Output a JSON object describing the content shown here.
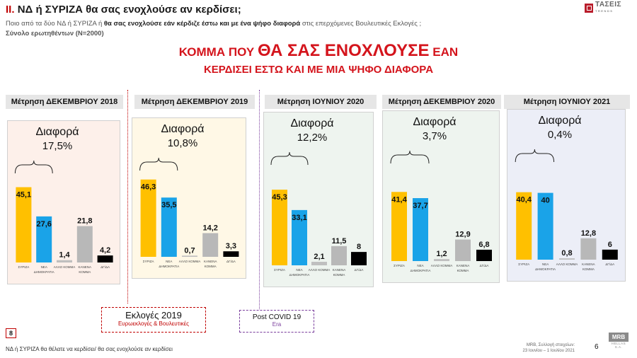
{
  "header": {
    "roman": "ΙΙ.",
    "title": "ΝΔ  ή ΣΥΡΙΖΑ θα σας ενοχλούσε αν κερδίσει;",
    "question_pre": "Ποιο από τα δύο ΝΔ ή ΣΥΡΙΖΑ ή ",
    "question_bold": "θα σας ενοχλούσε εάν κέρδιζε έστω και με ένα ψήφο διαφορά",
    "question_post": " στις επερχόμενες Βουλευτικές Εκλογές ;",
    "base": "Σύνολο ερωτηθέντων (N=2000)"
  },
  "logo": {
    "name": "ΤΑΣΕΙΣ",
    "sub": "TRENDS"
  },
  "headline": {
    "part1": "ΚΟΜΜΑ ΠΟΥ ",
    "part2": "ΘΑ ΣΑΣ ΕΝΟΧΛΟΥΣΕ",
    "part3": " ΕΑΝ",
    "line2": "ΚΕΡΔΙΣΕΙ ΕΣΤΩ ΚΑΙ ΜΕ ΜΙΑ ΨΗΦΟ ΔΙΑΦΟΡΑ"
  },
  "colors": {
    "syriza": "#ffc000",
    "nd": "#1aa3e8",
    "other": "#bfbfbf",
    "none": "#b8b8b8",
    "dk": "#000000",
    "accent_red": "#d4141c"
  },
  "chart_data": [
    {
      "type": "bar",
      "title": "Μέτρηση ΔΕΚΕΜΒΡΙΟΥ 2018",
      "annotation": "Διαφορά",
      "difference": "17,5%",
      "categories": [
        "ΣΥΡΙΖΑ",
        "ΝΕΑ ΔΗΜΟΚΡΑΤΙΑ",
        "ΑΛΛΟ ΚΟΜΜΑ",
        "ΚΑΝΕΝΑ ΚΟΜΜΑ",
        "ΔΓ/ΔΑ"
      ],
      "values": [
        45.1,
        27.6,
        1.4,
        21.8,
        4.2
      ],
      "value_labels": [
        "45,1",
        "27,6",
        "1,4",
        "21,8",
        "4,2"
      ],
      "panel_bg": "#fdf0ea",
      "ylim": [
        0,
        50
      ]
    },
    {
      "type": "bar",
      "title": "Μέτρηση ΔΕΚΕΜΒΡΙΟΥ 2019",
      "annotation": "Διαφορά",
      "difference": "10,8%",
      "categories": [
        "ΣΥΡΙΖΑ",
        "ΝΕΑ ΔΗΜΟΚΡΑΤΙΑ",
        "ΑΛΛΟ ΚΟΜΜΑ",
        "ΚΑΝΕΝΑ ΚΟΜΜΑ",
        "ΔΓ/ΔΑ"
      ],
      "values": [
        46.3,
        35.5,
        0.7,
        14.2,
        3.3
      ],
      "value_labels": [
        "46,3",
        "35,5",
        "0,7",
        "14,2",
        "3,3"
      ],
      "panel_bg": "#fff8e6",
      "ylim": [
        0,
        50
      ]
    },
    {
      "type": "bar",
      "title": "Μέτρηση ΙΟΥΝΙΟΥ 2020",
      "annotation": "Διαφορά",
      "difference": "12,2%",
      "categories": [
        "ΣΥΡΙΖΑ",
        "ΝΕΑ ΔΗΜΟΚΡΑΤΙΑ",
        "ΑΛΛΟ ΚΟΜΜΑ",
        "ΚΑΝΕΝΑ ΚΟΜΜΑ",
        "ΔΓ/ΔΑ"
      ],
      "values": [
        45.3,
        33.1,
        2.1,
        11.5,
        8
      ],
      "value_labels": [
        "45,3",
        "33,1",
        "2,1",
        "11,5",
        "8"
      ],
      "panel_bg": "#eef4ef",
      "ylim": [
        0,
        50
      ]
    },
    {
      "type": "bar",
      "title": "Μέτρηση ΔΕΚΕΜΒΡΙΟΥ 2020",
      "annotation": "Διαφορά",
      "difference": "3,7%",
      "categories": [
        "ΣΥΡΙΖΑ",
        "ΝΕΑ ΔΗΜΟΚΡΑΤΙΑ",
        "ΑΛΛΟ ΚΟΜΜΑ",
        "ΚΑΝΕΝΑ ΚΟΜΜΑ",
        "ΔΓ/ΔΑ"
      ],
      "values": [
        41.4,
        37.7,
        1.2,
        12.9,
        6.8
      ],
      "value_labels": [
        "41,4",
        "37,7",
        "1,2",
        "12,9",
        "6,8"
      ],
      "panel_bg": "#eef4ef",
      "ylim": [
        0,
        50
      ]
    },
    {
      "type": "bar",
      "title": "Μέτρηση ΙΟΥΝΙΟΥ 2021",
      "annotation": "Διαφορά",
      "difference": "0,4%",
      "categories": [
        "ΣΥΡΙΖΑ",
        "ΝΕΑ ΔΗΜΟΚΡΑΤΙΑ",
        "ΑΛΛΟ ΚΟΜΜΑ",
        "ΚΑΝΕΝΑ ΚΟΜΜΑ",
        "ΔΓ/ΔΑ"
      ],
      "values": [
        40.4,
        40,
        0.8,
        12.8,
        6
      ],
      "value_labels": [
        "40,4",
        "40",
        "0,8",
        "12,8",
        "6"
      ],
      "panel_bg": "#eceef7",
      "ylim": [
        0,
        50
      ]
    }
  ],
  "callouts": {
    "elections_title": "Εκλογές 2019",
    "elections_sub": "Ευρωεκλογές & Βουλευτικές",
    "covid_title": "Post  COVID 19",
    "covid_sub": "Era"
  },
  "footer": {
    "page_box": "8",
    "note": "ΝΔ ή ΣΥΡΙΖΑ θα θέλατε να κερδίσει/ θα σας ενοχλούσε αν κερδίσει",
    "source_line1": "MRB, Συλλογή στοιχείων:",
    "source_line2": "23 Ιουνίου  – 1 Ιουλίου 2021",
    "page_number": "6",
    "mrb_logo": "MRB",
    "mrb_sub": "HELLAS S.A."
  }
}
